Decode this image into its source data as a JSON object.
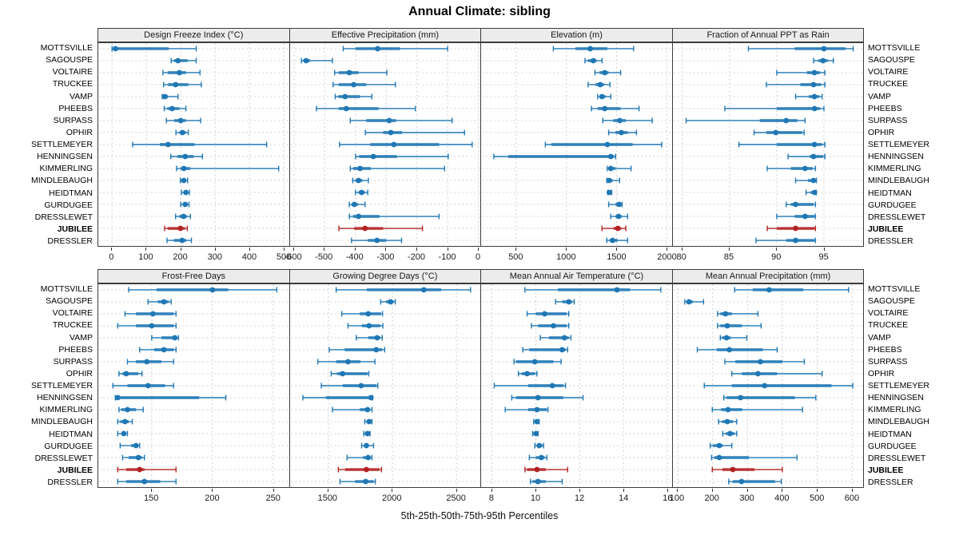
{
  "title": "Annual Climate: sibling",
  "caption": "5th-25th-50th-75th-95th Percentiles",
  "highlight_site": "JUBILEE",
  "colors": {
    "series": "#1f77b4",
    "highlight": "#b22222",
    "panel_header_bg": "#ececec",
    "grid": "#cfcfcf",
    "border": "#3c3c3c"
  },
  "chart_data": {
    "type": "dotplot",
    "note": "whisker = 5th-95th percentile, thick bar = 25th-75th, dot = 50th",
    "percentile_labels": [
      "5th",
      "25th",
      "50th",
      "75th",
      "95th"
    ],
    "categories": [
      "MOTTSVILLE",
      "SAGOUSPE",
      "VOLTAIRE",
      "TRUCKEE",
      "VAMP",
      "PHEEBS",
      "SURPASS",
      "OPHIR",
      "SETTLEMEYER",
      "HENNINGSEN",
      "KIMMERLING",
      "MINDLEBAUGH",
      "HEIDTMAN",
      "GURDUGEE",
      "DRESSLEWET",
      "JUBILEE",
      "DRESSLER"
    ],
    "panels": [
      {
        "label": "Design Freeze Index (°C)",
        "xlim": [
          -40,
          515
        ],
        "ticks": [
          0,
          100,
          200,
          300,
          400,
          500
        ],
        "values": [
          [
            0,
            3,
            10,
            165,
            245
          ],
          [
            172,
            180,
            192,
            220,
            245
          ],
          [
            148,
            162,
            196,
            215,
            256
          ],
          [
            150,
            163,
            185,
            222,
            260
          ],
          [
            146,
            150,
            154,
            163,
            192
          ],
          [
            152,
            161,
            175,
            196,
            215
          ],
          [
            158,
            181,
            200,
            215,
            258
          ],
          [
            186,
            196,
            205,
            215,
            222
          ],
          [
            60,
            139,
            163,
            240,
            450
          ],
          [
            171,
            190,
            213,
            237,
            263
          ],
          [
            188,
            200,
            209,
            228,
            485
          ],
          [
            199,
            204,
            209,
            215,
            220
          ],
          [
            202,
            208,
            215,
            220,
            225
          ],
          [
            200,
            206,
            213,
            218,
            224
          ],
          [
            185,
            196,
            208,
            218,
            228
          ],
          [
            153,
            162,
            199,
            212,
            219
          ],
          [
            160,
            180,
            204,
            216,
            231
          ]
        ]
      },
      {
        "label": "Effective Precipitation (mm)",
        "xlim": [
          -613,
          8
        ],
        "ticks": [
          -600,
          -500,
          -400,
          -300,
          -200,
          -100,
          0
        ],
        "values": [
          [
            -440,
            -400,
            -328,
            -255,
            -100
          ],
          [
            -576,
            -570,
            -561,
            -548,
            -475
          ],
          [
            -468,
            -455,
            -420,
            -390,
            -298
          ],
          [
            -473,
            -455,
            -406,
            -365,
            -270
          ],
          [
            -466,
            -456,
            -434,
            -385,
            -347
          ],
          [
            -527,
            -455,
            -430,
            -325,
            -205
          ],
          [
            -417,
            -365,
            -290,
            -268,
            -85
          ],
          [
            -368,
            -310,
            -285,
            -248,
            -45
          ],
          [
            -452,
            -352,
            -275,
            -128,
            -20
          ],
          [
            -400,
            -388,
            -342,
            -265,
            -98
          ],
          [
            -417,
            -408,
            -385,
            -350,
            -110
          ],
          [
            -409,
            -400,
            -390,
            -378,
            -358
          ],
          [
            -400,
            -390,
            -380,
            -370,
            -360
          ],
          [
            -420,
            -412,
            -404,
            -392,
            -369
          ],
          [
            -420,
            -408,
            -390,
            -322,
            -128
          ],
          [
            -454,
            -404,
            -369,
            -310,
            -182
          ],
          [
            -413,
            -360,
            -330,
            -300,
            -250
          ]
        ]
      },
      {
        "label": "Elevation (m)",
        "xlim": [
          150,
          2050
        ],
        "ticks": [
          500,
          1000,
          1500,
          2000
        ],
        "values": [
          [
            870,
            1090,
            1237,
            1408,
            1670
          ],
          [
            1185,
            1215,
            1268,
            1300,
            1355
          ],
          [
            1285,
            1330,
            1382,
            1420,
            1540
          ],
          [
            1216,
            1290,
            1337,
            1375,
            1434
          ],
          [
            1311,
            1330,
            1355,
            1390,
            1442
          ],
          [
            1250,
            1311,
            1382,
            1540,
            1724
          ],
          [
            1363,
            1466,
            1532,
            1592,
            1855
          ],
          [
            1421,
            1490,
            1548,
            1610,
            1698
          ],
          [
            790,
            850,
            1408,
            1660,
            1950
          ],
          [
            277,
            420,
            1442,
            1474,
            1490
          ],
          [
            1408,
            1430,
            1442,
            1490,
            1644
          ],
          [
            1403,
            1415,
            1427,
            1460,
            1530
          ],
          [
            1413,
            1420,
            1427,
            1437,
            1452
          ],
          [
            1421,
            1490,
            1525,
            1545,
            1555
          ],
          [
            1442,
            1490,
            1520,
            1550,
            1610
          ],
          [
            1355,
            1470,
            1513,
            1545,
            1592
          ],
          [
            1403,
            1430,
            1460,
            1510,
            1610
          ]
        ]
      },
      {
        "label": "Fraction of Annual PPT as Rain",
        "xlim": [
          79,
          99.2
        ],
        "ticks": [
          80,
          85,
          90,
          95
        ],
        "values": [
          [
            87,
            91.9,
            95,
            97.3,
            98.1
          ],
          [
            93.9,
            94.4,
            94.9,
            95.4,
            96
          ],
          [
            90,
            93.2,
            94,
            94.6,
            95.1
          ],
          [
            88.9,
            92.5,
            93.9,
            94.7,
            95.1
          ],
          [
            92,
            93.4,
            94,
            94.5,
            94.8
          ],
          [
            84.5,
            90,
            94,
            94.6,
            95
          ],
          [
            80.4,
            88.2,
            91,
            92.2,
            93
          ],
          [
            87.6,
            88.9,
            89.9,
            92.7,
            92.9
          ],
          [
            86,
            90,
            94,
            94.8,
            95.1
          ],
          [
            91.2,
            93.5,
            93.9,
            94.9,
            95.1
          ],
          [
            89,
            91.5,
            93,
            93.8,
            94.1
          ],
          [
            92,
            93.3,
            93.9,
            94.1,
            94.2
          ],
          [
            93.1,
            93.6,
            94,
            94.1,
            94.2
          ],
          [
            91,
            91.5,
            92,
            93.9,
            94.1
          ],
          [
            90,
            91.9,
            93,
            94,
            94.1
          ],
          [
            89,
            90,
            92,
            94,
            94.1
          ],
          [
            87.8,
            91,
            92,
            94,
            94.1
          ]
        ]
      },
      {
        "label": "Frost-Free Days",
        "xlim": [
          106,
          263
        ],
        "ticks": [
          150,
          200,
          250
        ],
        "values": [
          [
            131,
            154,
            200,
            213,
            253
          ],
          [
            147,
            155,
            160,
            164,
            166
          ],
          [
            128,
            137,
            151,
            168,
            170
          ],
          [
            122,
            137,
            150,
            168,
            170
          ],
          [
            150,
            158,
            169,
            171,
            172
          ],
          [
            140,
            152,
            160,
            168,
            170
          ],
          [
            130,
            137,
            146,
            158,
            168
          ],
          [
            123,
            126,
            129,
            139,
            142
          ],
          [
            118,
            130,
            147,
            161,
            168
          ],
          [
            120,
            121,
            122,
            189,
            211
          ],
          [
            123,
            125,
            130,
            137,
            143
          ],
          [
            122,
            124,
            128,
            131,
            134
          ],
          [
            122,
            125,
            127,
            128,
            130
          ],
          [
            124,
            133,
            137,
            139,
            140
          ],
          [
            126,
            131,
            139,
            142,
            144
          ],
          [
            122,
            129,
            140,
            144,
            170
          ],
          [
            122,
            129,
            144,
            157,
            170
          ]
        ]
      },
      {
        "label": "Growing Degree Days (°C)",
        "xlim": [
          1200,
          2690
        ],
        "ticks": [
          1500,
          2000,
          2500
        ],
        "values": [
          [
            1560,
            1800,
            2245,
            2380,
            2610
          ],
          [
            1908,
            1950,
            1985,
            2010,
            2022
          ],
          [
            1604,
            1745,
            1810,
            1910,
            1922
          ],
          [
            1652,
            1760,
            1817,
            1905,
            1925
          ],
          [
            1717,
            1810,
            1880,
            1905,
            1920
          ],
          [
            1506,
            1626,
            1873,
            1920,
            1939
          ],
          [
            1417,
            1560,
            1652,
            1750,
            1863
          ],
          [
            1521,
            1566,
            1610,
            1805,
            1815
          ],
          [
            1444,
            1611,
            1755,
            1875,
            1885
          ],
          [
            1300,
            1480,
            1832,
            1838,
            1845
          ],
          [
            1531,
            1745,
            1805,
            1825,
            1840
          ],
          [
            1784,
            1800,
            1817,
            1830,
            1840
          ],
          [
            1776,
            1790,
            1804,
            1815,
            1825
          ],
          [
            1759,
            1780,
            1796,
            1815,
            1852
          ],
          [
            1645,
            1770,
            1810,
            1830,
            1840
          ],
          [
            1577,
            1630,
            1796,
            1898,
            1914
          ],
          [
            1590,
            1708,
            1790,
            1853,
            1866
          ]
        ]
      },
      {
        "label": "Mean Annual Air Temperature (°C)",
        "xlim": [
          7.5,
          16.2
        ],
        "ticks": [
          8,
          10,
          12,
          14,
          16
        ],
        "values": [
          [
            9.5,
            11.0,
            13.7,
            14.3,
            15.7
          ],
          [
            10.9,
            11.2,
            11.5,
            11.65,
            11.75
          ],
          [
            9.6,
            10.0,
            10.4,
            11.4,
            11.5
          ],
          [
            9.8,
            10.1,
            10.8,
            11.4,
            11.5
          ],
          [
            10.2,
            10.6,
            11.3,
            11.5,
            11.6
          ],
          [
            9.4,
            9.7,
            11.2,
            11.35,
            11.45
          ],
          [
            9.0,
            9.1,
            9.95,
            10.8,
            11.15
          ],
          [
            9.2,
            9.35,
            9.6,
            9.95,
            10.05
          ],
          [
            8.1,
            9.65,
            10.75,
            11.25,
            11.35
          ],
          [
            8.9,
            9.1,
            10.1,
            11.25,
            12.15
          ],
          [
            8.6,
            9.65,
            10.05,
            10.5,
            10.55
          ],
          [
            9.9,
            9.95,
            10.05,
            10.1,
            10.15
          ],
          [
            9.85,
            9.93,
            10.0,
            10.05,
            10.1
          ],
          [
            9.95,
            10.05,
            10.15,
            10.3,
            10.35
          ],
          [
            9.7,
            10.0,
            10.25,
            10.4,
            10.5
          ],
          [
            9.5,
            9.6,
            10.05,
            10.45,
            11.45
          ],
          [
            9.75,
            9.85,
            10.1,
            10.45,
            11.2
          ]
        ]
      },
      {
        "label": "Mean Annual Precipitation (mm)",
        "xlim": [
          86,
          633
        ],
        "ticks": [
          100,
          200,
          300,
          400,
          500,
          600
        ],
        "values": [
          [
            263,
            315,
            362,
            460,
            590
          ],
          [
            120,
            125,
            132,
            143,
            174
          ],
          [
            214,
            222,
            237,
            255,
            330
          ],
          [
            214,
            222,
            242,
            284,
            339
          ],
          [
            222,
            227,
            240,
            252,
            298
          ],
          [
            156,
            212,
            248,
            344,
            385
          ],
          [
            235,
            265,
            337,
            400,
            463
          ],
          [
            255,
            284,
            330,
            385,
            514
          ],
          [
            176,
            255,
            349,
            541,
            602
          ],
          [
            232,
            240,
            280,
            436,
            496
          ],
          [
            199,
            224,
            244,
            285,
            458
          ],
          [
            217,
            227,
            242,
            258,
            269
          ],
          [
            229,
            238,
            250,
            263,
            269
          ],
          [
            193,
            201,
            219,
            229,
            255
          ],
          [
            197,
            205,
            219,
            304,
            442
          ],
          [
            199,
            228,
            258,
            320,
            400
          ],
          [
            246,
            258,
            283,
            379,
            397
          ]
        ]
      }
    ]
  }
}
